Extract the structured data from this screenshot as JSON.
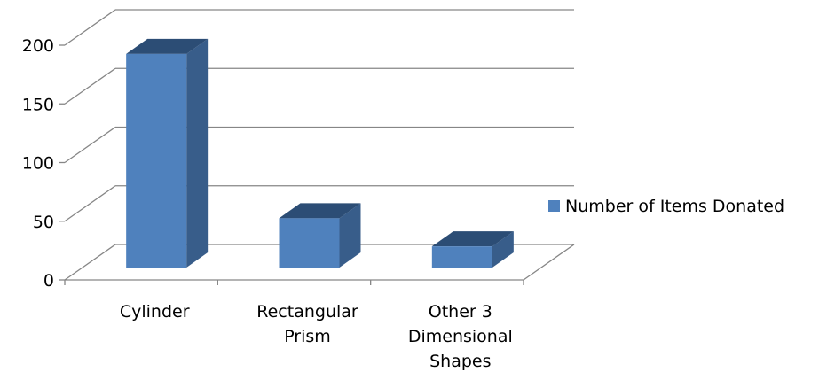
{
  "chart_data": {
    "type": "bar",
    "three_d": true,
    "categories": [
      "Cylinder",
      "Rectangular Prism",
      "Other 3 Dimensional Shapes"
    ],
    "series": [
      {
        "name": "Number of Items Donated",
        "values": [
          182,
          42,
          18
        ]
      }
    ],
    "ylim": [
      0,
      200
    ],
    "yticks": [
      0,
      50,
      100,
      150,
      200
    ],
    "grid": true,
    "legend_position": "right",
    "colors": {
      "bar_front": "#4F81BD",
      "bar_side": "#385D8A",
      "bar_top": "#2C4D75",
      "grid": "#868686"
    }
  }
}
